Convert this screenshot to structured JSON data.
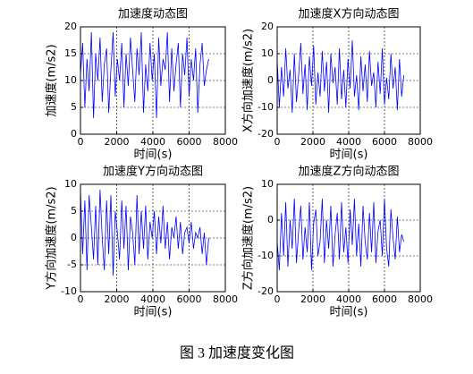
{
  "chart_data": [
    {
      "type": "line",
      "title": "加速度动态图",
      "xlabel": "时间(s)",
      "ylabel": "加速度(m/s2)",
      "xlim": [
        0,
        8000
      ],
      "xticks": [
        0,
        2000,
        4000,
        6000,
        8000
      ],
      "ylim": [
        0,
        20
      ],
      "yticks": [
        0,
        5,
        10,
        15,
        20
      ],
      "grid": true,
      "x": [
        0,
        120,
        240,
        360,
        480,
        600,
        720,
        840,
        960,
        1080,
        1200,
        1320,
        1440,
        1560,
        1680,
        1800,
        1920,
        2040,
        2160,
        2280,
        2400,
        2520,
        2640,
        2760,
        2880,
        3000,
        3120,
        3240,
        3360,
        3480,
        3600,
        3720,
        3840,
        3960,
        4080,
        4200,
        4320,
        4440,
        4560,
        4680,
        4800,
        4920,
        5040,
        5160,
        5280,
        5400,
        5520,
        5640,
        5760,
        5880,
        6000,
        6120,
        6240,
        6360,
        6480,
        6600,
        6720,
        6840,
        6960,
        7080
      ],
      "series": [
        {
          "color": "#0000ff",
          "values": [
            11,
            17,
            5,
            14,
            8,
            19,
            3,
            15,
            10,
            18,
            6,
            13,
            16,
            4,
            12,
            19,
            7,
            14,
            10,
            17,
            5,
            15,
            9,
            18,
            12,
            6,
            16,
            11,
            19,
            4,
            13,
            8,
            17,
            10,
            15,
            3,
            18,
            9,
            14,
            12,
            19,
            6,
            16,
            8,
            13,
            17,
            5,
            15,
            11,
            18,
            7,
            14,
            10,
            16,
            4,
            13,
            17,
            9,
            12,
            14
          ]
        }
      ]
    },
    {
      "type": "line",
      "title": "加速度X方向动态图",
      "xlabel": "时间(s)",
      "ylabel": "X方向加速度(m/s2)",
      "xlim": [
        0,
        8000
      ],
      "xticks": [
        0,
        2000,
        4000,
        6000,
        8000
      ],
      "ylim": [
        -20,
        20
      ],
      "yticks": [
        -20,
        -10,
        0,
        10,
        20
      ],
      "grid": true,
      "x": [
        0,
        120,
        240,
        360,
        480,
        600,
        720,
        840,
        960,
        1080,
        1200,
        1320,
        1440,
        1560,
        1680,
        1800,
        1920,
        2040,
        2160,
        2280,
        2400,
        2520,
        2640,
        2760,
        2880,
        3000,
        3120,
        3240,
        3360,
        3480,
        3600,
        3720,
        3840,
        3960,
        4080,
        4200,
        4320,
        4440,
        4560,
        4680,
        4800,
        4920,
        5040,
        5160,
        5280,
        5400,
        5520,
        5640,
        5760,
        5880,
        6000,
        6120,
        6240,
        6360,
        6480,
        6600,
        6720,
        6840,
        6960,
        7080
      ],
      "series": [
        {
          "color": "#0000ff",
          "values": [
            8,
            -10,
            5,
            -6,
            12,
            -3,
            4,
            -12,
            10,
            -8,
            2,
            14,
            -5,
            6,
            -11,
            9,
            -2,
            13,
            -9,
            3,
            -6,
            11,
            -4,
            7,
            -12,
            10,
            -1,
            5,
            -9,
            12,
            -7,
            4,
            -10,
            8,
            -3,
            15,
            -6,
            2,
            -11,
            9,
            -4,
            6,
            -8,
            11,
            -2,
            3,
            -10,
            7,
            -5,
            12,
            -9,
            1,
            -7,
            10,
            -3,
            5,
            -11,
            8,
            -6,
            2
          ]
        }
      ]
    },
    {
      "type": "line",
      "title": "加速度Y方向动态图",
      "xlabel": "时间(s)",
      "ylabel": "Y方向加速度(m/s2)",
      "xlim": [
        0,
        8000
      ],
      "xticks": [
        0,
        2000,
        4000,
        6000,
        8000
      ],
      "ylim": [
        -10,
        10
      ],
      "yticks": [
        -10,
        -5,
        0,
        5,
        10
      ],
      "grid": true,
      "x": [
        0,
        120,
        240,
        360,
        480,
        600,
        720,
        840,
        960,
        1080,
        1200,
        1320,
        1440,
        1560,
        1680,
        1800,
        1920,
        2040,
        2160,
        2280,
        2400,
        2520,
        2640,
        2760,
        2880,
        3000,
        3120,
        3240,
        3360,
        3480,
        3600,
        3720,
        3840,
        3960,
        4080,
        4200,
        4320,
        4440,
        4560,
        4680,
        4800,
        4920,
        5040,
        5160,
        5280,
        5400,
        5520,
        5640,
        5760,
        5880,
        6000,
        6120,
        6240,
        6360,
        6480,
        6600,
        6720,
        6840,
        6960,
        7080
      ],
      "series": [
        {
          "color": "#0000ff",
          "values": [
            9,
            -3,
            7,
            -6,
            8,
            2,
            -4,
            6,
            -5,
            9,
            0,
            -6,
            7,
            -3,
            8,
            -7,
            5,
            1,
            -4,
            7,
            -2,
            6,
            -6,
            4,
            1,
            -5,
            8,
            -3,
            5,
            -2,
            6,
            -4,
            3,
            0,
            5,
            -3,
            4,
            -1,
            6,
            -2,
            3,
            -4,
            2,
            0,
            4,
            -2,
            3,
            -3,
            1,
            2,
            -1,
            3,
            -2,
            1,
            0,
            2,
            -3,
            1,
            -5,
            0
          ]
        }
      ]
    },
    {
      "type": "line",
      "title": "加速度Z方向动态图",
      "xlabel": "时间(s)",
      "ylabel": "Z方向加速度(m/s2)",
      "xlim": [
        0,
        8000
      ],
      "xticks": [
        0,
        2000,
        4000,
        6000,
        8000
      ],
      "ylim": [
        -20,
        10
      ],
      "yticks": [
        -20,
        -10,
        0,
        10
      ],
      "grid": true,
      "x": [
        0,
        120,
        240,
        360,
        480,
        600,
        720,
        840,
        960,
        1080,
        1200,
        1320,
        1440,
        1560,
        1680,
        1800,
        1920,
        2040,
        2160,
        2280,
        2400,
        2520,
        2640,
        2760,
        2880,
        3000,
        3120,
        3240,
        3360,
        3480,
        3600,
        3720,
        3840,
        3960,
        4080,
        4200,
        4320,
        4440,
        4560,
        4680,
        4800,
        4920,
        5040,
        5160,
        5280,
        5400,
        5520,
        5640,
        5760,
        5880,
        6000,
        6120,
        6240,
        6360,
        6480,
        6600,
        6720,
        6840,
        6960,
        7080
      ],
      "series": [
        {
          "color": "#0000ff",
          "values": [
            -6,
            -14,
            2,
            -10,
            5,
            -13,
            0,
            -8,
            6,
            -12,
            -3,
            4,
            -11,
            -2,
            -9,
            5,
            -14,
            -1,
            3,
            -10,
            -6,
            6,
            -12,
            0,
            -8,
            4,
            -13,
            -4,
            2,
            -11,
            5,
            -9,
            -2,
            -12,
            3,
            -7,
            6,
            -10,
            -1,
            -13,
            4,
            -6,
            -11,
            2,
            -9,
            5,
            -12,
            -3,
            0,
            -10,
            6,
            -8,
            -13,
            3,
            -5,
            -11,
            1,
            -9,
            -4,
            -6
          ]
        }
      ]
    }
  ],
  "caption": "图 3  加速度变化图"
}
